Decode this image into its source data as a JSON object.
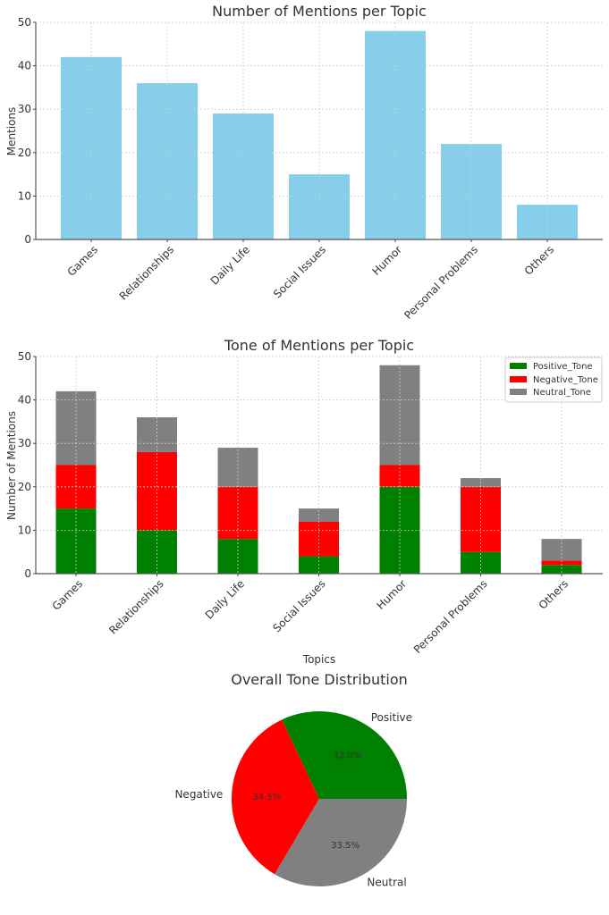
{
  "chart_data": [
    {
      "type": "bar",
      "title": "Number of Mentions per Topic",
      "xlabel": "",
      "ylabel": "Mentions",
      "categories": [
        "Games",
        "Relationships",
        "Daily Life",
        "Social Issues",
        "Humor",
        "Personal Problems",
        "Others"
      ],
      "values": [
        42,
        36,
        29,
        15,
        48,
        22,
        8
      ],
      "ylim": [
        0,
        50
      ],
      "yticks": [
        "0",
        "10",
        "20",
        "30",
        "40",
        "50"
      ],
      "grid": true,
      "color": "#87ceeb"
    },
    {
      "type": "bar",
      "stacked": true,
      "title": "Tone of Mentions per Topic",
      "xlabel": "Topics",
      "ylabel": "Number of Mentions",
      "categories": [
        "Games",
        "Relationships",
        "Daily Life",
        "Social Issues",
        "Humor",
        "Personal Problems",
        "Others"
      ],
      "series": [
        {
          "name": "Positive_Tone",
          "values": [
            15,
            10,
            8,
            4,
            20,
            5,
            2
          ],
          "color": "#008000"
        },
        {
          "name": "Negative_Tone",
          "values": [
            10,
            18,
            12,
            8,
            5,
            15,
            1
          ],
          "color": "#ff0000"
        },
        {
          "name": "Neutral_Tone",
          "values": [
            17,
            8,
            9,
            3,
            23,
            2,
            5
          ],
          "color": "#808080"
        }
      ],
      "ylim": [
        0,
        50
      ],
      "yticks": [
        "0",
        "10",
        "20",
        "30",
        "40",
        "50"
      ],
      "grid": true,
      "legend": "top-right"
    },
    {
      "type": "pie",
      "title": "Overall Tone Distribution",
      "labels": [
        "Positive",
        "Negative",
        "Neutral"
      ],
      "values": [
        32.0,
        34.5,
        33.5
      ],
      "pct_labels": [
        "32.0%",
        "34.5%",
        "33.5%"
      ],
      "colors": [
        "#008000",
        "#ff0000",
        "#808080"
      ]
    }
  ]
}
